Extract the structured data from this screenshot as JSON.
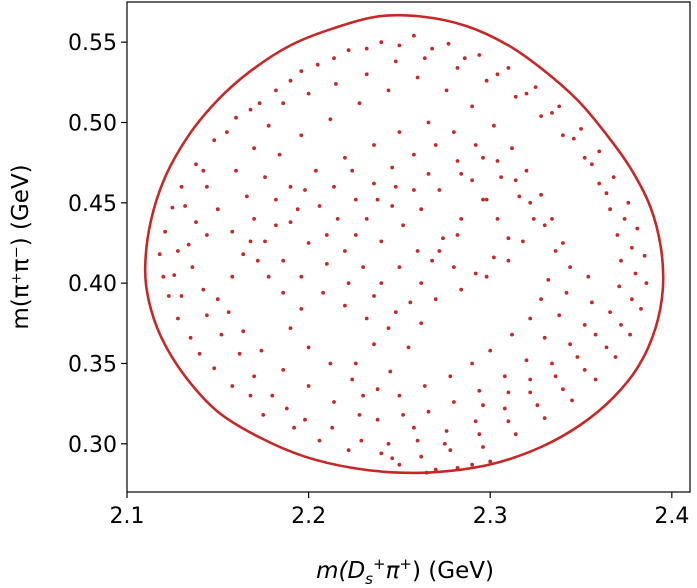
{
  "chart_data": {
    "type": "scatter",
    "title": "",
    "xlabel": {
      "pre": "m(D",
      "sub": "s",
      "sup": "+",
      "post": "π",
      "sup2": "+",
      "unit": ") (GeV)"
    },
    "ylabel": "m(π⁺π⁻) (GeV)",
    "xlim": [
      2.1,
      2.41
    ],
    "ylim": [
      0.27,
      0.575
    ],
    "xticks": [
      2.1,
      2.2,
      2.3,
      2.4
    ],
    "xtick_labels": [
      "2.1",
      "2.2",
      "2.3",
      "2.4"
    ],
    "yticks": [
      0.3,
      0.35,
      0.4,
      0.45,
      0.5,
      0.55
    ],
    "ytick_labels": [
      "0.30",
      "0.35",
      "0.40",
      "0.45",
      "0.50",
      "0.55"
    ],
    "grid": false,
    "marker_color": "#c62828",
    "boundary_color": "#c62828",
    "boundary": [
      [
        2.11,
        0.41
      ],
      [
        2.113,
        0.438
      ],
      [
        2.121,
        0.466
      ],
      [
        2.134,
        0.492
      ],
      [
        2.15,
        0.514
      ],
      [
        2.168,
        0.532
      ],
      [
        2.19,
        0.548
      ],
      [
        2.212,
        0.558
      ],
      [
        2.238,
        0.566
      ],
      [
        2.262,
        0.566
      ],
      [
        2.287,
        0.56
      ],
      [
        2.31,
        0.548
      ],
      [
        2.33,
        0.532
      ],
      [
        2.348,
        0.514
      ],
      [
        2.363,
        0.494
      ],
      [
        2.377,
        0.472
      ],
      [
        2.388,
        0.448
      ],
      [
        2.394,
        0.422
      ],
      [
        2.395,
        0.396
      ],
      [
        2.391,
        0.372
      ],
      [
        2.382,
        0.349
      ],
      [
        2.368,
        0.329
      ],
      [
        2.35,
        0.312
      ],
      [
        2.328,
        0.298
      ],
      [
        2.303,
        0.288
      ],
      [
        2.277,
        0.283
      ],
      [
        2.251,
        0.282
      ],
      [
        2.224,
        0.285
      ],
      [
        2.198,
        0.292
      ],
      [
        2.173,
        0.304
      ],
      [
        2.15,
        0.32
      ],
      [
        2.132,
        0.342
      ],
      [
        2.119,
        0.366
      ],
      [
        2.112,
        0.389
      ]
    ],
    "points": [
      [
        2.246,
        0.291
      ],
      [
        2.27,
        0.284
      ],
      [
        2.29,
        0.287
      ],
      [
        2.265,
        0.282
      ],
      [
        2.282,
        0.285
      ],
      [
        2.3,
        0.289
      ],
      [
        2.25,
        0.287
      ],
      [
        2.275,
        0.3
      ],
      [
        2.258,
        0.31
      ],
      [
        2.238,
        0.315
      ],
      [
        2.229,
        0.302
      ],
      [
        2.213,
        0.31
      ],
      [
        2.198,
        0.315
      ],
      [
        2.188,
        0.322
      ],
      [
        2.175,
        0.318
      ],
      [
        2.168,
        0.33
      ],
      [
        2.158,
        0.336
      ],
      [
        2.148,
        0.347
      ],
      [
        2.14,
        0.356
      ],
      [
        2.135,
        0.366
      ],
      [
        2.128,
        0.378
      ],
      [
        2.123,
        0.392
      ],
      [
        2.12,
        0.404
      ],
      [
        2.118,
        0.418
      ],
      [
        2.121,
        0.432
      ],
      [
        2.125,
        0.447
      ],
      [
        2.13,
        0.46
      ],
      [
        2.138,
        0.474
      ],
      [
        2.148,
        0.489
      ],
      [
        2.16,
        0.503
      ],
      [
        2.173,
        0.512
      ],
      [
        2.19,
        0.526
      ],
      [
        2.205,
        0.536
      ],
      [
        2.222,
        0.545
      ],
      [
        2.24,
        0.55
      ],
      [
        2.258,
        0.554
      ],
      [
        2.277,
        0.549
      ],
      [
        2.294,
        0.542
      ],
      [
        2.31,
        0.534
      ],
      [
        2.325,
        0.522
      ],
      [
        2.338,
        0.51
      ],
      [
        2.35,
        0.496
      ],
      [
        2.36,
        0.482
      ],
      [
        2.368,
        0.466
      ],
      [
        2.376,
        0.45
      ],
      [
        2.381,
        0.434
      ],
      [
        2.385,
        0.417
      ],
      [
        2.386,
        0.4
      ],
      [
        2.383,
        0.384
      ],
      [
        2.377,
        0.368
      ],
      [
        2.369,
        0.354
      ],
      [
        2.358,
        0.34
      ],
      [
        2.345,
        0.327
      ],
      [
        2.33,
        0.316
      ],
      [
        2.314,
        0.306
      ],
      [
        2.296,
        0.298
      ],
      [
        2.23,
        0.33
      ],
      [
        2.245,
        0.345
      ],
      [
        2.255,
        0.36
      ],
      [
        2.262,
        0.375
      ],
      [
        2.248,
        0.382
      ],
      [
        2.236,
        0.392
      ],
      [
        2.222,
        0.4
      ],
      [
        2.21,
        0.412
      ],
      [
        2.2,
        0.425
      ],
      [
        2.19,
        0.438
      ],
      [
        2.182,
        0.452
      ],
      [
        2.176,
        0.466
      ],
      [
        2.184,
        0.48
      ],
      [
        2.196,
        0.492
      ],
      [
        2.212,
        0.502
      ],
      [
        2.228,
        0.512
      ],
      [
        2.244,
        0.52
      ],
      [
        2.26,
        0.528
      ],
      [
        2.276,
        0.52
      ],
      [
        2.29,
        0.51
      ],
      [
        2.302,
        0.498
      ],
      [
        2.312,
        0.484
      ],
      [
        2.32,
        0.47
      ],
      [
        2.328,
        0.455
      ],
      [
        2.334,
        0.44
      ],
      [
        2.34,
        0.425
      ],
      [
        2.344,
        0.41
      ],
      [
        2.342,
        0.394
      ],
      [
        2.338,
        0.38
      ],
      [
        2.33,
        0.366
      ],
      [
        2.32,
        0.352
      ],
      [
        2.308,
        0.342
      ],
      [
        2.294,
        0.333
      ],
      [
        2.28,
        0.326
      ],
      [
        2.266,
        0.32
      ],
      [
        2.252,
        0.318
      ],
      [
        2.24,
        0.426
      ],
      [
        2.252,
        0.436
      ],
      [
        2.262,
        0.446
      ],
      [
        2.272,
        0.458
      ],
      [
        2.284,
        0.468
      ],
      [
        2.296,
        0.478
      ],
      [
        2.306,
        0.466
      ],
      [
        2.296,
        0.452
      ],
      [
        2.284,
        0.44
      ],
      [
        2.274,
        0.428
      ],
      [
        2.268,
        0.414
      ],
      [
        2.262,
        0.4
      ],
      [
        2.256,
        0.388
      ],
      [
        2.27,
        0.39
      ],
      [
        2.284,
        0.396
      ],
      [
        2.298,
        0.404
      ],
      [
        2.31,
        0.414
      ],
      [
        2.318,
        0.426
      ],
      [
        2.324,
        0.44
      ],
      [
        2.316,
        0.454
      ],
      [
        2.15,
        0.39
      ],
      [
        2.158,
        0.404
      ],
      [
        2.164,
        0.418
      ],
      [
        2.158,
        0.432
      ],
      [
        2.15,
        0.446
      ],
      [
        2.144,
        0.46
      ],
      [
        2.16,
        0.47
      ],
      [
        2.17,
        0.484
      ],
      [
        2.178,
        0.498
      ],
      [
        2.186,
        0.512
      ],
      [
        2.2,
        0.518
      ],
      [
        2.215,
        0.524
      ],
      [
        2.232,
        0.53
      ],
      [
        2.248,
        0.538
      ],
      [
        2.264,
        0.54
      ],
      [
        2.282,
        0.534
      ],
      [
        2.298,
        0.526
      ],
      [
        2.314,
        0.516
      ],
      [
        2.328,
        0.504
      ],
      [
        2.34,
        0.492
      ],
      [
        2.352,
        0.478
      ],
      [
        2.36,
        0.462
      ],
      [
        2.366,
        0.446
      ],
      [
        2.37,
        0.43
      ],
      [
        2.372,
        0.414
      ],
      [
        2.371,
        0.398
      ],
      [
        2.366,
        0.382
      ],
      [
        2.358,
        0.368
      ],
      [
        2.348,
        0.354
      ],
      [
        2.336,
        0.342
      ],
      [
        2.322,
        0.332
      ],
      [
        2.308,
        0.322
      ],
      [
        2.292,
        0.314
      ],
      [
        2.276,
        0.308
      ],
      [
        2.26,
        0.302
      ],
      [
        2.244,
        0.3
      ],
      [
        2.228,
        0.318
      ],
      [
        2.214,
        0.326
      ],
      [
        2.2,
        0.336
      ],
      [
        2.186,
        0.346
      ],
      [
        2.174,
        0.358
      ],
      [
        2.164,
        0.37
      ],
      [
        2.156,
        0.382
      ],
      [
        2.142,
        0.396
      ],
      [
        2.136,
        0.41
      ],
      [
        2.134,
        0.424
      ],
      [
        2.138,
        0.438
      ],
      [
        2.144,
        0.43
      ],
      [
        2.226,
        0.35
      ],
      [
        2.236,
        0.362
      ],
      [
        2.244,
        0.372
      ],
      [
        2.232,
        0.378
      ],
      [
        2.22,
        0.386
      ],
      [
        2.208,
        0.394
      ],
      [
        2.196,
        0.404
      ],
      [
        2.186,
        0.414
      ],
      [
        2.176,
        0.426
      ],
      [
        2.17,
        0.44
      ],
      [
        2.166,
        0.454
      ],
      [
        2.19,
        0.46
      ],
      [
        2.204,
        0.47
      ],
      [
        2.22,
        0.478
      ],
      [
        2.236,
        0.486
      ],
      [
        2.25,
        0.494
      ],
      [
        2.266,
        0.5
      ],
      [
        2.28,
        0.494
      ],
      [
        2.292,
        0.486
      ],
      [
        2.304,
        0.476
      ],
      [
        2.314,
        0.464
      ],
      [
        2.322,
        0.45
      ],
      [
        2.33,
        0.436
      ],
      [
        2.336,
        0.42
      ],
      [
        2.354,
        0.404
      ],
      [
        2.356,
        0.388
      ],
      [
        2.352,
        0.374
      ],
      [
        2.344,
        0.362
      ],
      [
        2.334,
        0.35
      ],
      [
        2.322,
        0.34
      ],
      [
        2.31,
        0.332
      ],
      [
        2.296,
        0.324
      ],
      [
        2.216,
        0.44
      ],
      [
        2.226,
        0.452
      ],
      [
        2.236,
        0.462
      ],
      [
        2.246,
        0.472
      ],
      [
        2.258,
        0.48
      ],
      [
        2.27,
        0.486
      ],
      [
        2.282,
        0.476
      ],
      [
        2.29,
        0.464
      ],
      [
        2.298,
        0.452
      ],
      [
        2.304,
        0.44
      ],
      [
        2.31,
        0.428
      ],
      [
        2.302,
        0.416
      ],
      [
        2.292,
        0.406
      ],
      [
        2.28,
        0.41
      ],
      [
        2.272,
        0.42
      ],
      [
        2.282,
        0.43
      ],
      [
        2.26,
        0.42
      ],
      [
        2.25,
        0.41
      ],
      [
        2.24,
        0.4
      ],
      [
        2.23,
        0.41
      ],
      [
        2.22,
        0.42
      ],
      [
        2.21,
        0.43
      ],
      [
        2.206,
        0.448
      ],
      [
        2.214,
        0.46
      ],
      [
        2.224,
        0.47
      ],
      [
        2.232,
        0.44
      ],
      [
        2.246,
        0.448
      ],
      [
        2.258,
        0.458
      ],
      [
        2.266,
        0.468
      ],
      [
        2.248,
        0.46
      ],
      [
        2.238,
        0.452
      ],
      [
        2.226,
        0.43
      ],
      [
        2.13,
        0.392
      ],
      [
        2.126,
        0.405
      ],
      [
        2.128,
        0.42
      ],
      [
        2.132,
        0.448
      ],
      [
        2.142,
        0.47
      ],
      [
        2.155,
        0.494
      ],
      [
        2.168,
        0.508
      ],
      [
        2.182,
        0.52
      ],
      [
        2.196,
        0.532
      ],
      [
        2.214,
        0.54
      ],
      [
        2.232,
        0.546
      ],
      [
        2.25,
        0.548
      ],
      [
        2.268,
        0.546
      ],
      [
        2.286,
        0.54
      ],
      [
        2.304,
        0.53
      ],
      [
        2.32,
        0.518
      ],
      [
        2.334,
        0.506
      ],
      [
        2.346,
        0.49
      ],
      [
        2.356,
        0.474
      ],
      [
        2.364,
        0.456
      ],
      [
        2.374,
        0.44
      ],
      [
        2.378,
        0.422
      ],
      [
        2.38,
        0.406
      ],
      [
        2.378,
        0.39
      ],
      [
        2.372,
        0.374
      ],
      [
        2.364,
        0.36
      ],
      [
        2.352,
        0.346
      ],
      [
        2.34,
        0.334
      ],
      [
        2.326,
        0.324
      ],
      [
        2.31,
        0.314
      ],
      [
        2.294,
        0.306
      ],
      [
        2.278,
        0.296
      ],
      [
        2.262,
        0.292
      ],
      [
        2.24,
        0.294
      ],
      [
        2.222,
        0.296
      ],
      [
        2.206,
        0.302
      ],
      [
        2.192,
        0.31
      ],
      [
        2.18,
        0.33
      ],
      [
        2.17,
        0.342
      ],
      [
        2.162,
        0.356
      ],
      [
        2.152,
        0.368
      ],
      [
        2.144,
        0.38
      ],
      [
        2.19,
        0.372
      ],
      [
        2.2,
        0.36
      ],
      [
        2.212,
        0.35
      ],
      [
        2.224,
        0.34
      ],
      [
        2.238,
        0.334
      ],
      [
        2.25,
        0.33
      ],
      [
        2.264,
        0.336
      ],
      [
        2.278,
        0.342
      ],
      [
        2.29,
        0.35
      ],
      [
        2.3,
        0.358
      ],
      [
        2.312,
        0.368
      ],
      [
        2.322,
        0.378
      ],
      [
        2.328,
        0.39
      ],
      [
        2.332,
        0.402
      ],
      [
        2.196,
        0.384
      ],
      [
        2.186,
        0.394
      ],
      [
        2.178,
        0.404
      ],
      [
        2.172,
        0.414
      ],
      [
        2.168,
        0.426
      ],
      [
        2.182,
        0.436
      ],
      [
        2.194,
        0.446
      ],
      [
        2.198,
        0.458
      ]
    ]
  }
}
